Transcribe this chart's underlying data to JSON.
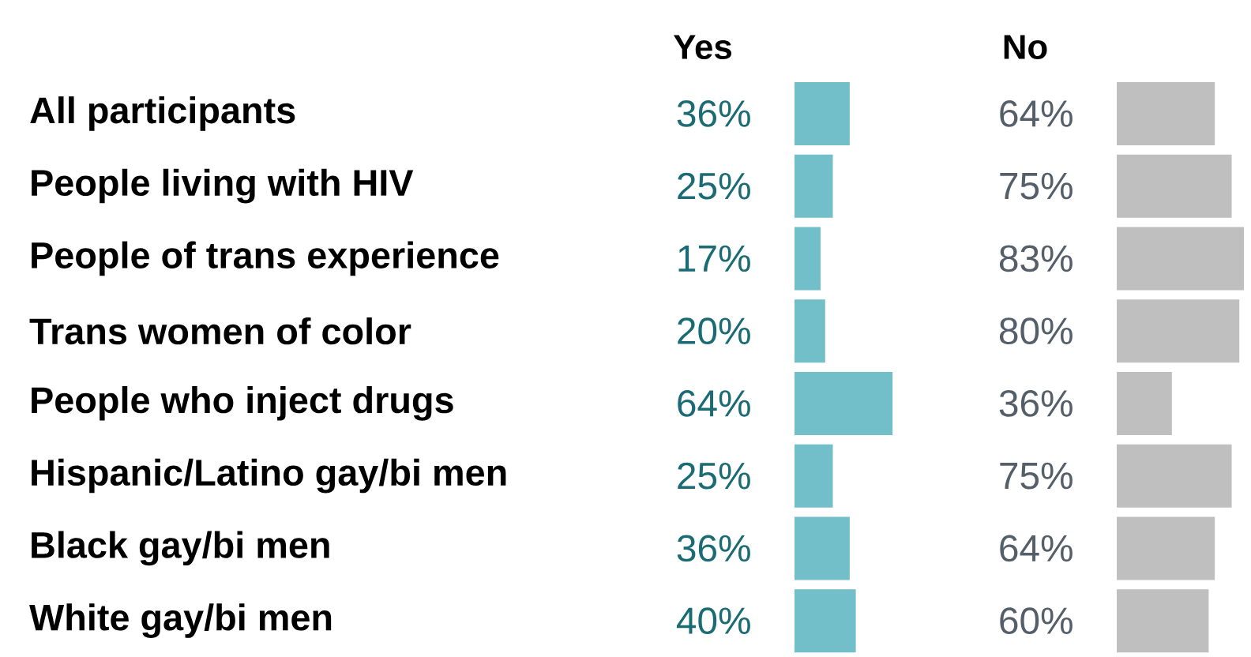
{
  "chart_data": [
    {
      "type": "bar",
      "orientation": "horizontal",
      "title": "Yes",
      "tick_labels": "y",
      "color": "#72bec9",
      "categories": [
        "All participants",
        "People living with HIV",
        "People of trans experience",
        "Trans women of color",
        "People who inject drugs",
        "Hispanic/Latino gay/bi men",
        "Black gay/bi men",
        "White gay/bi men"
      ],
      "values": [
        36,
        25,
        17,
        20,
        64,
        25,
        36,
        40
      ],
      "value_labels": [
        "36%",
        "25%",
        "17%",
        "20%",
        "64%",
        "25%",
        "36%",
        "40%"
      ]
    },
    {
      "type": "bar",
      "orientation": "horizontal",
      "title": "No",
      "tick_labels": false,
      "color": "#bfbfbf",
      "categories": [
        null,
        null,
        null,
        null,
        null,
        null,
        null,
        null
      ],
      "values": [
        64,
        75,
        83,
        80,
        36,
        75,
        64,
        60
      ],
      "value_labels": [
        "64%",
        "75%",
        "83%",
        "80%",
        "36%",
        "75%",
        "64%",
        "60%"
      ]
    }
  ]
}
